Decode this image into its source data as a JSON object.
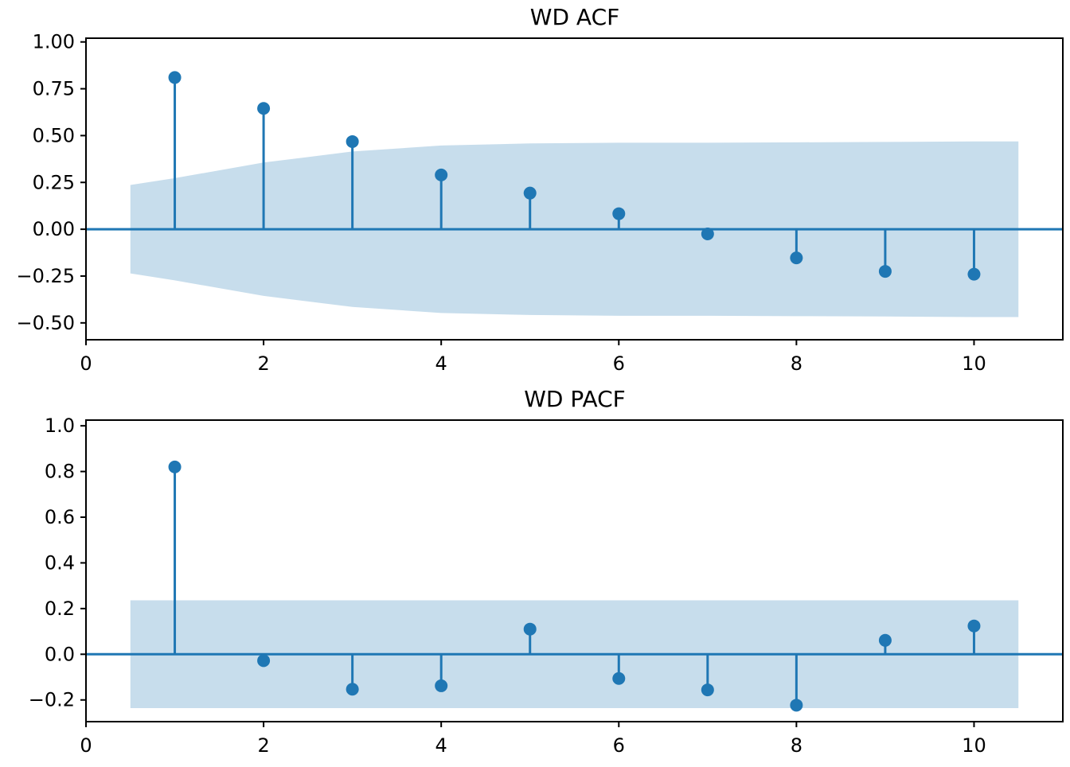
{
  "chart_data": [
    {
      "type": "stem",
      "title": "WD ACF",
      "xlabel": "",
      "ylabel": "",
      "x": [
        1,
        2,
        3,
        4,
        5,
        6,
        7,
        8,
        9,
        10
      ],
      "values": [
        0.81,
        0.645,
        0.468,
        0.29,
        0.193,
        0.083,
        -0.025,
        -0.153,
        -0.225,
        -0.24
      ],
      "confidence_band": {
        "x": [
          0.5,
          1,
          2,
          3,
          4,
          5,
          6,
          7,
          8,
          9,
          10,
          10.5
        ],
        "upper": [
          0.236,
          0.273,
          0.356,
          0.415,
          0.447,
          0.458,
          0.462,
          0.462,
          0.464,
          0.466,
          0.469,
          0.469
        ],
        "lower": [
          -0.236,
          -0.273,
          -0.356,
          -0.415,
          -0.447,
          -0.458,
          -0.462,
          -0.462,
          -0.464,
          -0.466,
          -0.469,
          -0.469
        ]
      },
      "xlim": [
        0,
        11
      ],
      "ylim": [
        -0.59,
        1.02
      ],
      "xticks": [
        0,
        2,
        4,
        6,
        8,
        10
      ],
      "yticks": [
        -0.5,
        -0.25,
        0,
        0.25,
        0.5,
        0.75,
        1.0
      ],
      "ytick_labels": [
        "−0.50",
        "−0.25",
        "0.00",
        "0.25",
        "0.50",
        "0.75",
        "1.00"
      ],
      "xtick_labels": [
        "0",
        "2",
        "4",
        "6",
        "8",
        "10"
      ]
    },
    {
      "type": "stem",
      "title": "WD PACF",
      "xlabel": "",
      "ylabel": "",
      "x": [
        1,
        2,
        3,
        4,
        5,
        6,
        7,
        8,
        9,
        10
      ],
      "values": [
        0.82,
        -0.028,
        -0.153,
        -0.138,
        0.11,
        -0.106,
        -0.156,
        -0.223,
        0.061,
        0.124
      ],
      "confidence_band": {
        "x": [
          0.5,
          10.5
        ],
        "upper": [
          0.236,
          0.236
        ],
        "lower": [
          -0.236,
          -0.236
        ]
      },
      "xlim": [
        0,
        11
      ],
      "ylim": [
        -0.295,
        1.025
      ],
      "xticks": [
        0,
        2,
        4,
        6,
        8,
        10
      ],
      "yticks": [
        -0.2,
        0,
        0.2,
        0.4,
        0.6,
        0.8,
        1.0
      ],
      "ytick_labels": [
        "−0.2",
        "0.0",
        "0.2",
        "0.4",
        "0.6",
        "0.8",
        "1.0"
      ],
      "xtick_labels": [
        "0",
        "2",
        "4",
        "6",
        "8",
        "10"
      ]
    }
  ],
  "colors": {
    "series": "#1f77b4",
    "band": "#1f77b4",
    "band_opacity": 0.25,
    "axes": "#000000"
  }
}
